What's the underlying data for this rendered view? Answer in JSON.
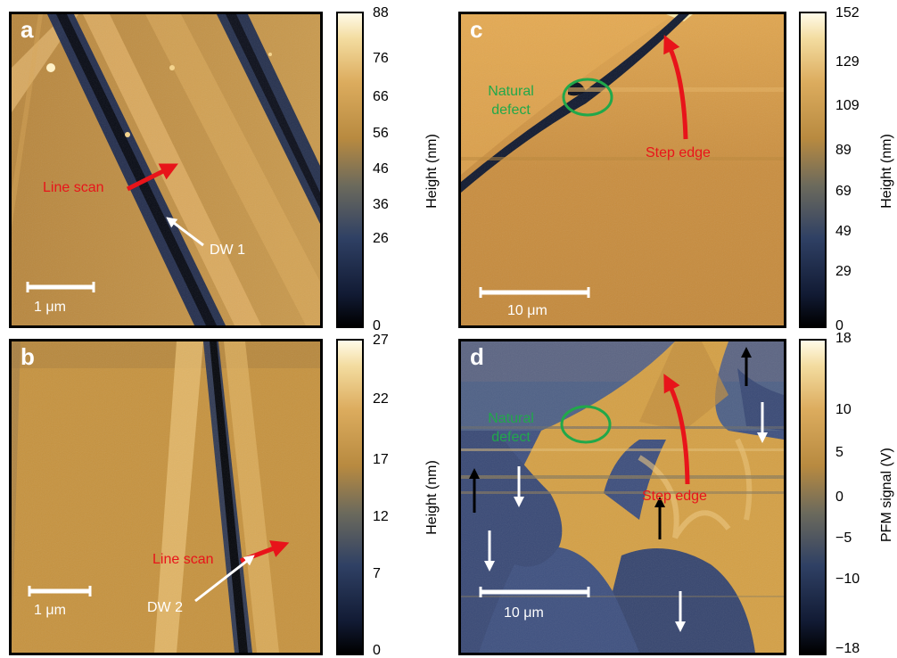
{
  "panels": {
    "a": {
      "label": "a",
      "annotations": {
        "line_scan": "Line scan",
        "dw": "DW 1"
      },
      "scale_bar": "1 μm",
      "colorbar": {
        "title": "Height (nm)",
        "ticks": [
          "88",
          "76",
          "66",
          "56",
          "46",
          "36",
          "26",
          "0"
        ]
      }
    },
    "b": {
      "label": "b",
      "annotations": {
        "line_scan": "Line scan",
        "dw": "DW 2"
      },
      "scale_bar": "1 μm",
      "colorbar": {
        "title": "Height (nm)",
        "ticks": [
          "27",
          "22",
          "17",
          "12",
          "7",
          "0"
        ]
      }
    },
    "c": {
      "label": "c",
      "annotations": {
        "natural_defect": "Natural\ndefect",
        "step_edge": "Step edge"
      },
      "scale_bar": "10 μm",
      "colorbar": {
        "title": "Height (nm)",
        "ticks": [
          "152",
          "129",
          "109",
          "89",
          "69",
          "49",
          "29",
          "0"
        ]
      }
    },
    "d": {
      "label": "d",
      "annotations": {
        "natural_defect": "Natural\ndefect",
        "step_edge": "Step edge"
      },
      "scale_bar": "10 μm",
      "colorbar": {
        "title": "PFM signal (V)",
        "ticks": [
          "18",
          "10",
          "5",
          "0",
          "−5",
          "−10",
          "−18"
        ]
      }
    }
  },
  "colors": {
    "annotation_red": "#e8141a",
    "annotation_green": "#21a84a",
    "colormap": [
      "#000000",
      "#1c2340",
      "#3a4c70",
      "#8b7a52",
      "#c8953f",
      "#e7b66a",
      "#fffbe6"
    ]
  }
}
